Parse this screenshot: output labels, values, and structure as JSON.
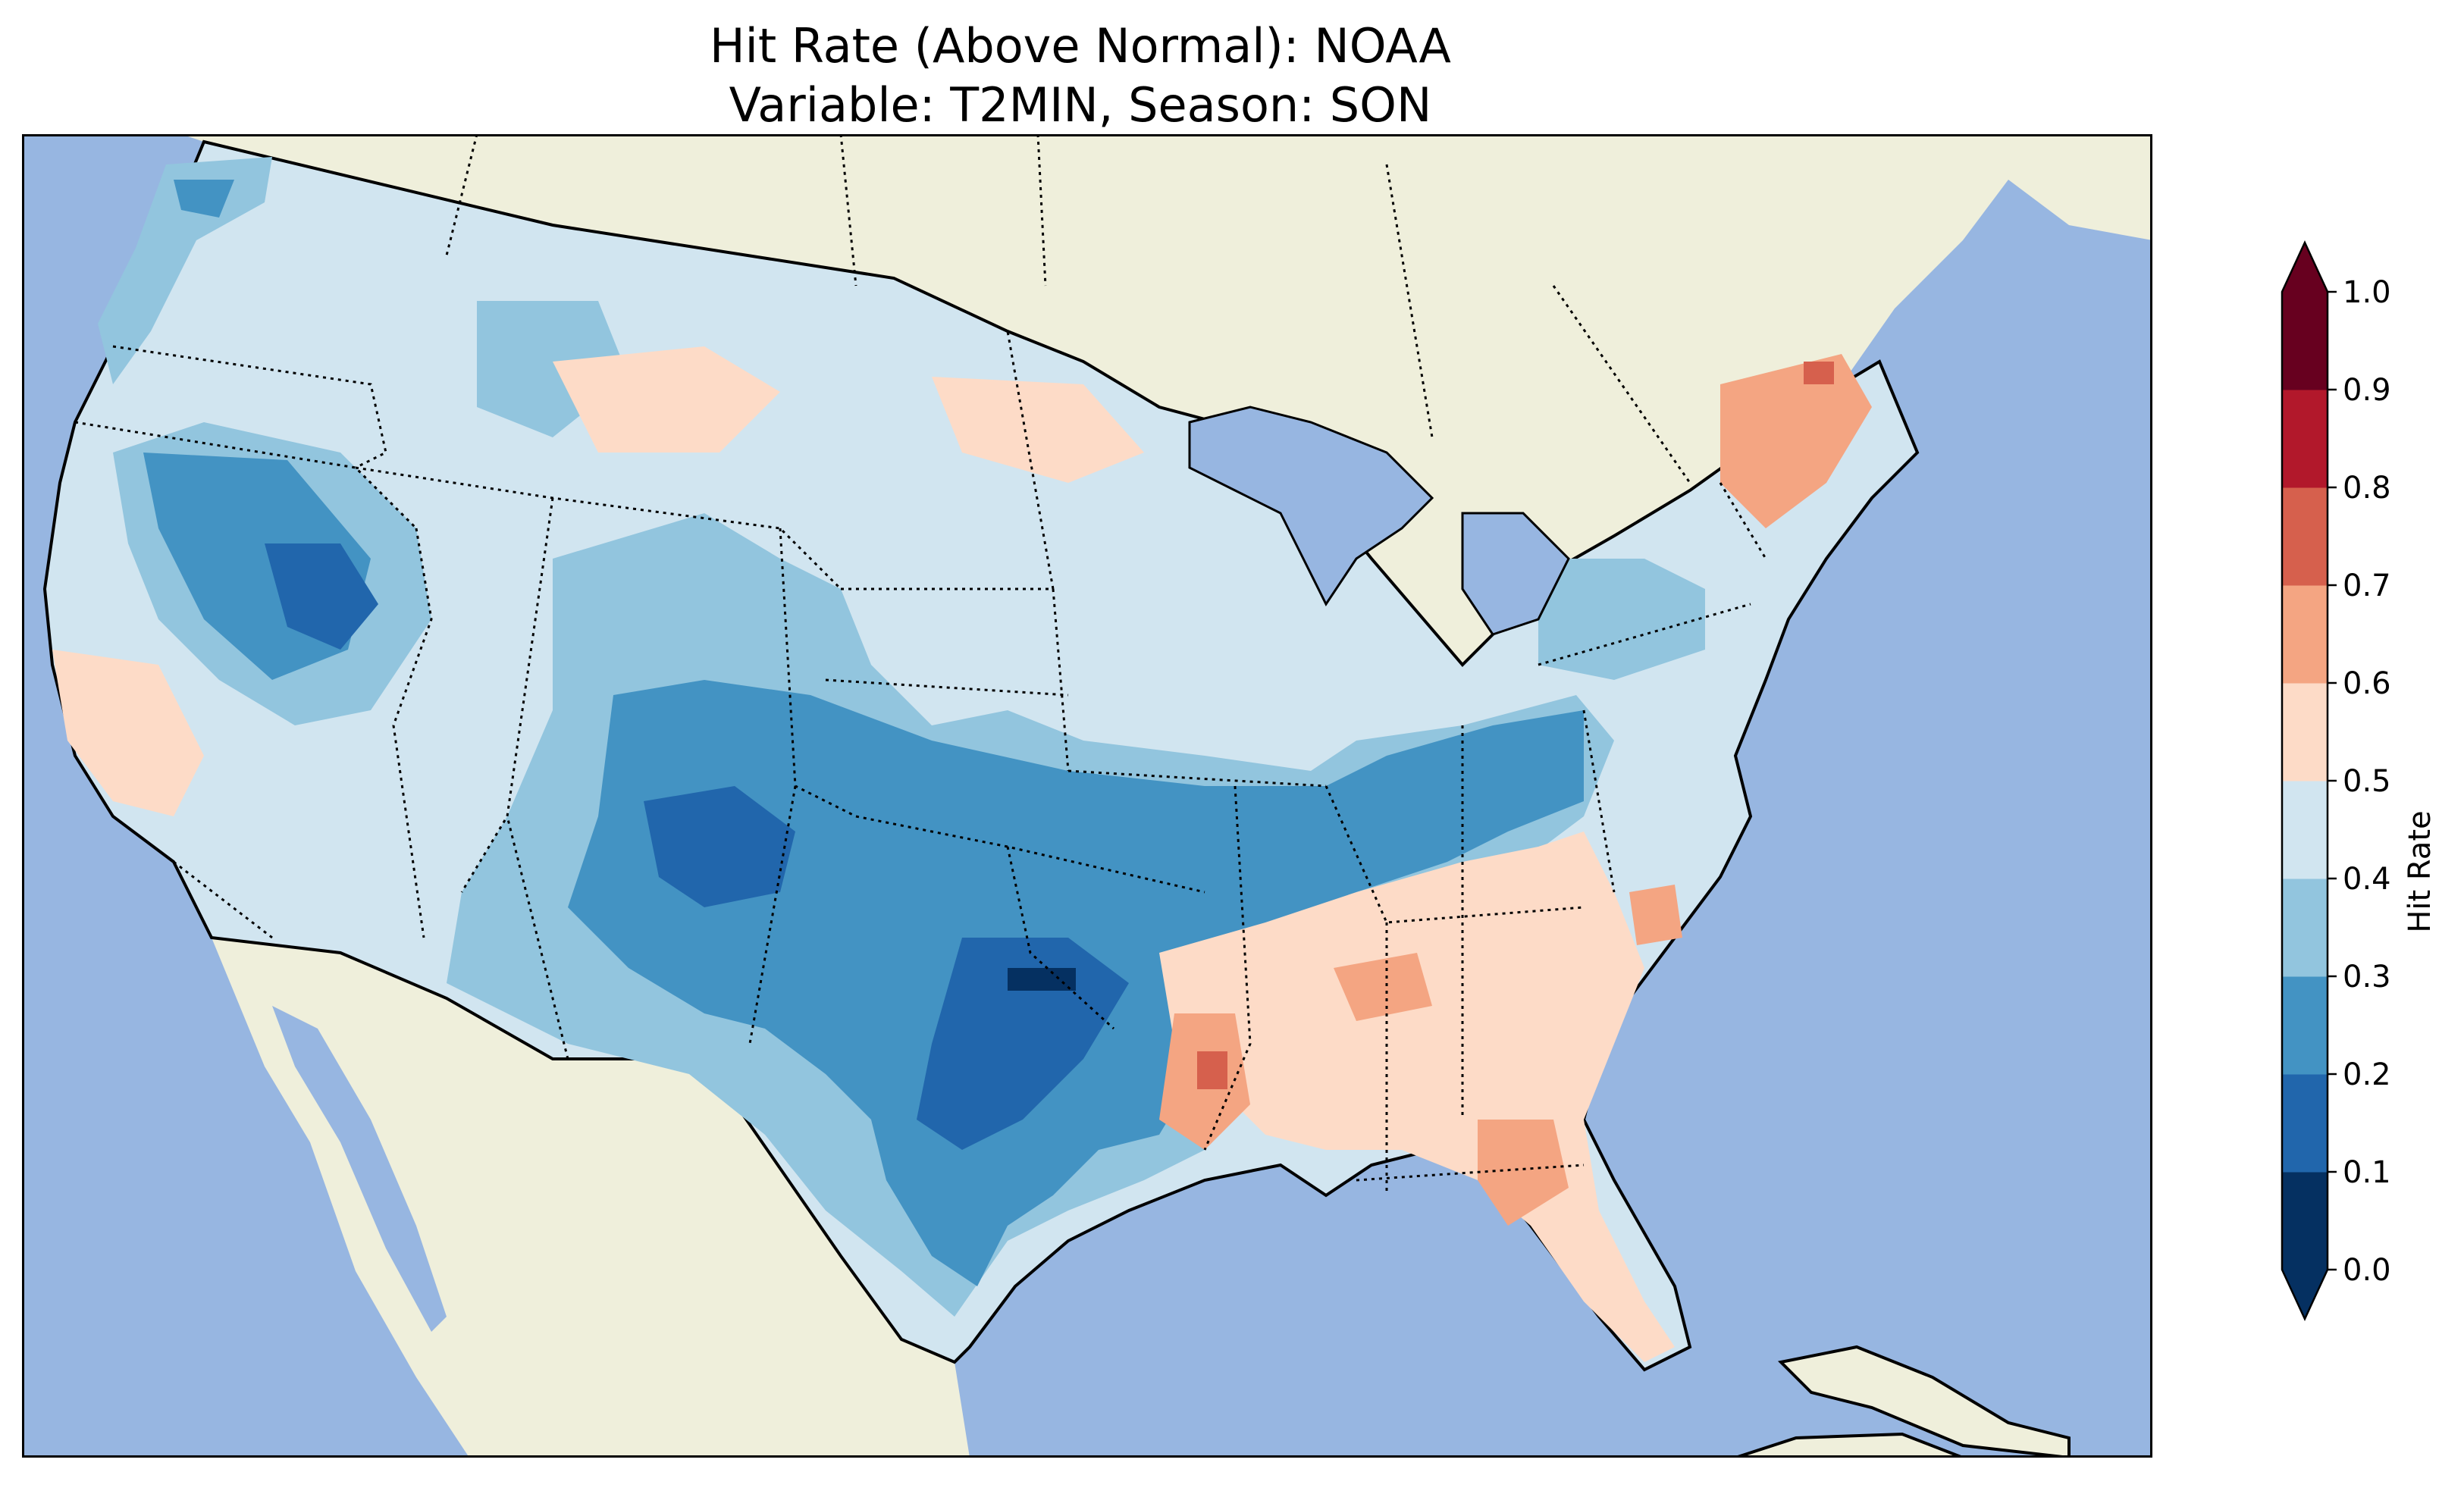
{
  "title": {
    "line1": "Hit Rate (Above Normal): NOAA",
    "line2": "Variable: T2MIN, Season: SON"
  },
  "colorbar": {
    "label": "Hit Rate",
    "ticks": [
      "0.0",
      "0.1",
      "0.2",
      "0.3",
      "0.4",
      "0.5",
      "0.6",
      "0.7",
      "0.8",
      "0.9",
      "1.0"
    ],
    "colors": [
      "#053061",
      "#2166ac",
      "#4393c3",
      "#92c5de",
      "#d1e5f0",
      "#fddbc7",
      "#f4a582",
      "#d6604d",
      "#b2182b",
      "#67001f"
    ],
    "extend": "both"
  },
  "map": {
    "ocean_color": "#97b6e1",
    "land_color": "#efefdb",
    "region": "CONUS",
    "palette": {
      "0.0-0.1": "#053061",
      "0.1-0.2": "#2166ac",
      "0.2-0.3": "#4393c3",
      "0.3-0.4": "#92c5de",
      "0.4-0.5": "#d1e5f0",
      "0.5-0.6": "#fddbc7",
      "0.6-0.7": "#f4a582",
      "0.7-0.8": "#d6604d"
    }
  }
}
